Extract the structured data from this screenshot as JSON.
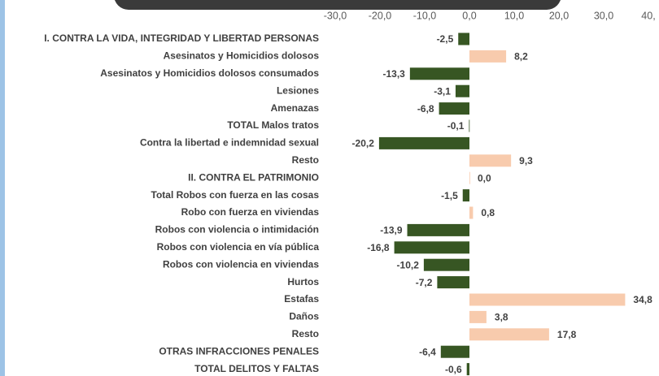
{
  "chart_data": {
    "type": "bar",
    "orientation": "horizontal",
    "categories": [
      "I. CONTRA LA VIDA, INTEGRIDAD Y LIBERTAD PERSONAS",
      "Asesinatos y Homicidios dolosos",
      "Asesinatos y Homicidios dolosos consumados",
      "Lesiones",
      "Amenazas",
      "TOTAL Malos tratos",
      "Contra la libertad e indemnidad sexual",
      "Resto",
      "II. CONTRA EL PATRIMONIO",
      "Total Robos con fuerza en las cosas",
      "Robo con fuerza en viviendas",
      "Robos con violencia o intimidación",
      "Robos con violencia en vía pública",
      "Robos con violencia en viviendas",
      "Hurtos",
      "Estafas",
      "Daños",
      "Resto",
      "OTRAS INFRACCIONES PENALES",
      "TOTAL DELITOS Y FALTAS"
    ],
    "values": [
      -2.5,
      8.2,
      -13.3,
      -3.1,
      -6.8,
      -0.1,
      -20.2,
      9.3,
      0.0,
      -1.5,
      0.8,
      -13.9,
      -16.8,
      -10.2,
      -7.2,
      34.8,
      3.8,
      17.8,
      -6.4,
      -0.6
    ],
    "value_labels": [
      "-2,5",
      "8,2",
      "-13,3",
      "-3,1",
      "-6,8",
      "-0,1",
      "-20,2",
      "9,3",
      "0,0",
      "-1,5",
      "0,8",
      "-13,9",
      "-16,8",
      "-10,2",
      "-7,2",
      "34,8",
      "3,8",
      "17,8",
      "-6,4",
      "-0,6"
    ],
    "positive_color": "#f8cbad",
    "negative_color": "#375623",
    "xlim": [
      -30,
      40
    ],
    "xticks": [
      {
        "value": -30,
        "label": "-30,0"
      },
      {
        "value": -20,
        "label": "-20,0"
      },
      {
        "value": -10,
        "label": "-10,0"
      },
      {
        "value": 0,
        "label": "0,0"
      },
      {
        "value": 10,
        "label": "10,0"
      },
      {
        "value": 20,
        "label": "20,0"
      },
      {
        "value": 30,
        "label": "30,0"
      },
      {
        "value": 40,
        "label": "40,"
      }
    ],
    "grid": false
  }
}
